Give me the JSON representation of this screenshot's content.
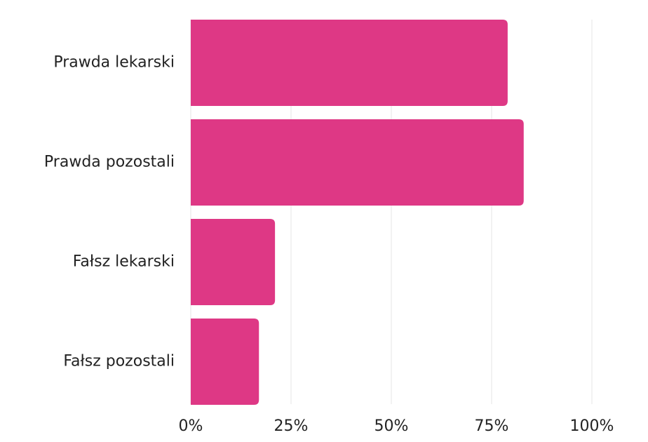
{
  "chart_data": {
    "type": "bar",
    "orientation": "horizontal",
    "categories": [
      "Prawda lekarski",
      "Prawda pozostali",
      "Fałsz lekarski",
      "Fałsz pozostali"
    ],
    "values": [
      79,
      83,
      21,
      17
    ],
    "color": "#de3885",
    "xlim": [
      0,
      100
    ],
    "xticks": [
      {
        "value": 0,
        "label": "0%"
      },
      {
        "value": 25,
        "label": "25%"
      },
      {
        "value": 50,
        "label": "50%"
      },
      {
        "value": 75,
        "label": "75%"
      },
      {
        "value": 100,
        "label": "100%"
      }
    ],
    "grid": true
  }
}
